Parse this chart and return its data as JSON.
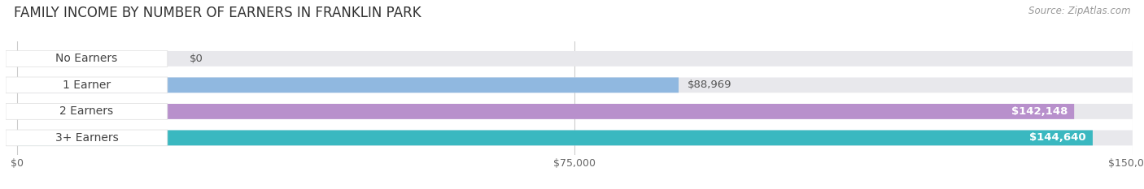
{
  "title": "FAMILY INCOME BY NUMBER OF EARNERS IN FRANKLIN PARK",
  "source": "Source: ZipAtlas.com",
  "categories": [
    "No Earners",
    "1 Earner",
    "2 Earners",
    "3+ Earners"
  ],
  "values": [
    0,
    88969,
    142148,
    144640
  ],
  "bar_colors": [
    "#f4a0a0",
    "#90b8e0",
    "#b890cc",
    "#3ab8c0"
  ],
  "xlim": [
    0,
    150000
  ],
  "xtick_labels": [
    "$0",
    "$75,000",
    "$150,000"
  ],
  "value_labels": [
    "$0",
    "$88,969",
    "$142,148",
    "$144,640"
  ],
  "background_color": "#ffffff",
  "bar_bg_color": "#e8e8ec",
  "label_bg_color": "#ffffff",
  "title_fontsize": 12,
  "source_fontsize": 8.5,
  "label_fontsize": 10,
  "value_fontsize": 9.5,
  "tick_fontsize": 9
}
